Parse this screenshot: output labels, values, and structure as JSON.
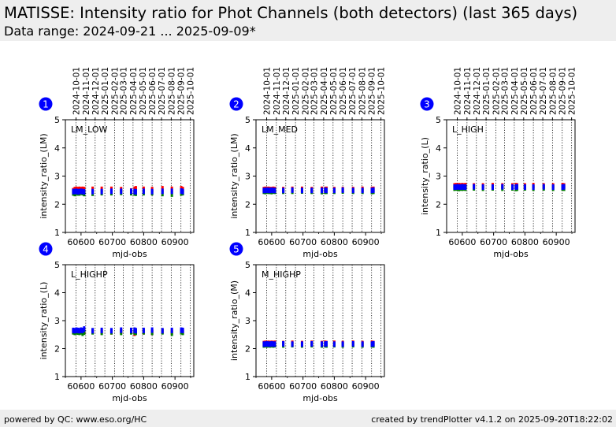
{
  "header": {
    "title": "MATISSE: Intensity ratio for Phot Channels (both detectors) (last 365 days)",
    "subtitle": "Data range: 2024-09-21 ... 2025-09-09*"
  },
  "footer": {
    "left": "powered by QC: www.eso.org/HC",
    "right": "created by trendPlotter v4.1.2 on 2025-09-20T18:22:02"
  },
  "colors": {
    "red": "#ff0000",
    "green": "#008000",
    "blue": "#0000ff",
    "badge": "#0000ff"
  },
  "chart_data": [
    {
      "type": "scatter",
      "panel_number": "1",
      "annotation": "LM_LOW",
      "xlabel": "mjd-obs",
      "ylabel": "intensity_ratio_(LM)",
      "xlim": [
        60550,
        60960
      ],
      "ylim": [
        1,
        5
      ],
      "x_ticks": [
        "60600",
        "60700",
        "60800",
        "60900"
      ],
      "y_ticks": [
        "1",
        "2",
        "3",
        "4",
        "5"
      ],
      "date_ticks": [
        "2024-10-01",
        "2024-11-01",
        "2024-12-01",
        "2025-01-01",
        "2025-02-01",
        "2025-03-01",
        "2025-04-01",
        "2025-05-01",
        "2025-06-01",
        "2025-07-01",
        "2025-08-01",
        "2025-09-01",
        "2025-10-01"
      ],
      "series": [
        {
          "color": "red",
          "x": [
            60575,
            60580,
            60585,
            60590,
            60595,
            60600,
            60605,
            60610,
            60637,
            60666,
            60697,
            60728,
            60760,
            60771,
            60775,
            60800,
            60827,
            60860,
            60890,
            60920,
            60925
          ],
          "y": [
            2.48,
            2.52,
            2.53,
            2.52,
            2.53,
            2.52,
            2.53,
            2.52,
            2.53,
            2.53,
            2.53,
            2.52,
            2.47,
            2.53,
            2.55,
            2.53,
            2.52,
            2.55,
            2.53,
            2.55,
            2.52
          ]
        },
        {
          "color": "green",
          "x": [
            60575,
            60580,
            60585,
            60590,
            60595,
            60600,
            60605,
            60610,
            60637,
            60666,
            60697,
            60728,
            60760,
            60771,
            60775,
            60800,
            60827,
            60860,
            60890,
            60920,
            60925
          ],
          "y": [
            2.4,
            2.38,
            2.42,
            2.4,
            2.4,
            2.43,
            2.41,
            2.38,
            2.39,
            2.41,
            2.41,
            2.42,
            2.41,
            2.4,
            2.39,
            2.41,
            2.41,
            2.38,
            2.36,
            2.4,
            2.41
          ]
        },
        {
          "color": "blue",
          "x": [
            60575,
            60580,
            60585,
            60590,
            60595,
            60600,
            60605,
            60610,
            60637,
            60666,
            60697,
            60728,
            60760,
            60771,
            60775,
            60800,
            60827,
            60860,
            60890,
            60920,
            60925
          ],
          "y": [
            2.45,
            2.45,
            2.46,
            2.44,
            2.45,
            2.46,
            2.45,
            2.44,
            2.45,
            2.45,
            2.46,
            2.46,
            2.46,
            2.45,
            2.44,
            2.46,
            2.45,
            2.46,
            2.46,
            2.47,
            2.45
          ]
        }
      ]
    },
    {
      "type": "scatter",
      "panel_number": "2",
      "annotation": "LM_MED",
      "xlabel": "mjd-obs",
      "ylabel": "intensity_ratio_(LM)",
      "xlim": [
        60550,
        60960
      ],
      "ylim": [
        1,
        5
      ],
      "x_ticks": [
        "60600",
        "60700",
        "60800",
        "60900"
      ],
      "y_ticks": [
        "1",
        "2",
        "3",
        "4",
        "5"
      ],
      "date_ticks": [
        "2024-10-01",
        "2024-11-01",
        "2024-12-01",
        "2025-01-01",
        "2025-02-01",
        "2025-03-01",
        "2025-04-01",
        "2025-05-01",
        "2025-06-01",
        "2025-07-01",
        "2025-08-01",
        "2025-09-01",
        "2025-10-01"
      ],
      "series": [
        {
          "color": "red",
          "x": [
            60575,
            60580,
            60585,
            60590,
            60595,
            60600,
            60605,
            60610,
            60637,
            60666,
            60697,
            60728,
            60760,
            60771,
            60775,
            60800,
            60827,
            60860,
            60890,
            60920,
            60925
          ],
          "y": [
            2.52,
            2.53,
            2.52,
            2.53,
            2.52,
            2.52,
            2.53,
            2.52,
            2.52,
            2.53,
            2.53,
            2.52,
            2.53,
            2.52,
            2.53,
            2.52,
            2.52,
            2.52,
            2.53,
            2.52,
            2.53
          ]
        },
        {
          "color": "green",
          "x": [
            60575,
            60580,
            60585,
            60590,
            60595,
            60600,
            60605,
            60610,
            60637,
            60666,
            60697,
            60728,
            60760,
            60771,
            60775,
            60800,
            60827,
            60860,
            60890,
            60920,
            60925
          ],
          "y": [
            2.46,
            2.45,
            2.47,
            2.46,
            2.46,
            2.45,
            2.47,
            2.46,
            2.46,
            2.46,
            2.47,
            2.46,
            2.45,
            2.46,
            2.46,
            2.46,
            2.47,
            2.46,
            2.46,
            2.45,
            2.46
          ]
        },
        {
          "color": "blue",
          "x": [
            60575,
            60580,
            60585,
            60590,
            60595,
            60600,
            60605,
            60610,
            60637,
            60666,
            60697,
            60728,
            60760,
            60771,
            60775,
            60800,
            60827,
            60860,
            60890,
            60920,
            60925
          ],
          "y": [
            2.49,
            2.49,
            2.5,
            2.49,
            2.49,
            2.5,
            2.49,
            2.49,
            2.49,
            2.5,
            2.49,
            2.49,
            2.49,
            2.5,
            2.49,
            2.49,
            2.5,
            2.49,
            2.49,
            2.49,
            2.5
          ]
        }
      ]
    },
    {
      "type": "scatter",
      "panel_number": "3",
      "annotation": "L_HIGH",
      "xlabel": "mjd-obs",
      "ylabel": "intensity_ratio_(L)",
      "xlim": [
        60550,
        60960
      ],
      "ylim": [
        1,
        5
      ],
      "x_ticks": [
        "60600",
        "60700",
        "60800",
        "60900"
      ],
      "y_ticks": [
        "1",
        "2",
        "3",
        "4",
        "5"
      ],
      "date_ticks": [
        "2024-10-01",
        "2024-11-01",
        "2024-12-01",
        "2025-01-01",
        "2025-02-01",
        "2025-03-01",
        "2025-04-01",
        "2025-05-01",
        "2025-06-01",
        "2025-07-01",
        "2025-08-01",
        "2025-09-01",
        "2025-10-01"
      ],
      "series": [
        {
          "color": "red",
          "x": [
            60575,
            60580,
            60585,
            60590,
            60595,
            60600,
            60605,
            60610,
            60637,
            60666,
            60697,
            60728,
            60760,
            60771,
            60775,
            60800,
            60827,
            60860,
            60890,
            60920,
            60925
          ],
          "y": [
            2.65,
            2.66,
            2.65,
            2.66,
            2.65,
            2.66,
            2.65,
            2.66,
            2.65,
            2.65,
            2.66,
            2.65,
            2.65,
            2.66,
            2.65,
            2.65,
            2.66,
            2.65,
            2.65,
            2.66,
            2.65
          ]
        },
        {
          "color": "green",
          "x": [
            60575,
            60580,
            60585,
            60590,
            60595,
            60600,
            60605,
            60610,
            60637,
            60666,
            60697,
            60728,
            60760,
            60771,
            60775,
            60800,
            60827,
            60860,
            60890,
            60920,
            60925
          ],
          "y": [
            2.57,
            2.58,
            2.57,
            2.56,
            2.58,
            2.57,
            2.58,
            2.57,
            2.58,
            2.57,
            2.58,
            2.57,
            2.58,
            2.56,
            2.57,
            2.58,
            2.57,
            2.58,
            2.57,
            2.58,
            2.57
          ]
        },
        {
          "color": "blue",
          "x": [
            60575,
            60580,
            60585,
            60590,
            60595,
            60600,
            60605,
            60610,
            60637,
            60666,
            60697,
            60728,
            60760,
            60771,
            60775,
            60800,
            60827,
            60860,
            60890,
            60920,
            60925
          ],
          "y": [
            2.61,
            2.61,
            2.62,
            2.61,
            2.61,
            2.62,
            2.61,
            2.61,
            2.62,
            2.61,
            2.61,
            2.62,
            2.61,
            2.61,
            2.62,
            2.61,
            2.61,
            2.62,
            2.61,
            2.61,
            2.62
          ]
        }
      ]
    },
    {
      "type": "scatter",
      "panel_number": "4",
      "annotation": "L_HIGHP",
      "xlabel": "mjd-obs",
      "ylabel": "intensity_ratio_(L)",
      "xlim": [
        60550,
        60960
      ],
      "ylim": [
        1,
        5
      ],
      "x_ticks": [
        "60600",
        "60700",
        "60800",
        "60900"
      ],
      "y_ticks": [
        "1",
        "2",
        "3",
        "4",
        "5"
      ],
      "series": [
        {
          "color": "red",
          "x": [
            60575,
            60580,
            60585,
            60590,
            60595,
            60600,
            60605,
            60610,
            60637,
            60666,
            60697,
            60728,
            60760,
            60771,
            60775,
            60800,
            60827,
            60860,
            60890,
            60920,
            60925
          ],
          "y": [
            2.62,
            2.61,
            2.62,
            2.6,
            2.62,
            2.61,
            2.62,
            2.6,
            2.62,
            2.61,
            2.6,
            2.62,
            2.61,
            2.55,
            2.62,
            2.6,
            2.58,
            2.62,
            2.6,
            2.62,
            2.61
          ]
        },
        {
          "color": "green",
          "x": [
            60575,
            60580,
            60585,
            60590,
            60595,
            60600,
            60605,
            60610,
            60637,
            60666,
            60697,
            60728,
            60760,
            60771,
            60775,
            60800,
            60827,
            60860,
            60890,
            60920,
            60925
          ],
          "y": [
            2.6,
            2.58,
            2.6,
            2.59,
            2.58,
            2.6,
            2.55,
            2.59,
            2.6,
            2.58,
            2.6,
            2.58,
            2.6,
            2.59,
            2.58,
            2.6,
            2.58,
            2.6,
            2.55,
            2.6,
            2.58
          ]
        },
        {
          "color": "blue",
          "x": [
            60575,
            60580,
            60585,
            60590,
            60595,
            60600,
            60605,
            60610,
            60637,
            60666,
            60697,
            60728,
            60760,
            60771,
            60775,
            60800,
            60827,
            60860,
            60890,
            60920,
            60925
          ],
          "y": [
            2.65,
            2.64,
            2.66,
            2.65,
            2.64,
            2.66,
            2.65,
            2.7,
            2.64,
            2.65,
            2.64,
            2.66,
            2.65,
            2.66,
            2.64,
            2.65,
            2.66,
            2.64,
            2.65,
            2.66,
            2.65
          ]
        }
      ]
    },
    {
      "type": "scatter",
      "panel_number": "5",
      "annotation": "M_HIGHP",
      "xlabel": "mjd-obs",
      "ylabel": "intensity_ratio_(M)",
      "xlim": [
        60550,
        60960
      ],
      "ylim": [
        1,
        5
      ],
      "x_ticks": [
        "60600",
        "60700",
        "60800",
        "60900"
      ],
      "y_ticks": [
        "1",
        "2",
        "3",
        "4",
        "5"
      ],
      "series": [
        {
          "color": "red",
          "x": [
            60575,
            60580,
            60585,
            60590,
            60595,
            60600,
            60605,
            60610,
            60637,
            60666,
            60697,
            60728,
            60760,
            60771,
            60775,
            60800,
            60827,
            60860,
            60890,
            60920,
            60925
          ],
          "y": [
            2.18,
            2.19,
            2.18,
            2.19,
            2.18,
            2.19,
            2.18,
            2.19,
            2.18,
            2.19,
            2.18,
            2.19,
            2.18,
            2.19,
            2.18,
            2.19,
            2.18,
            2.19,
            2.18,
            2.19,
            2.18
          ]
        },
        {
          "color": "green",
          "x": [
            60575,
            60580,
            60585,
            60590,
            60595,
            60600,
            60605,
            60610,
            60637,
            60666,
            60697,
            60728,
            60760,
            60771,
            60775,
            60800,
            60827,
            60860,
            60890,
            60920,
            60925
          ],
          "y": [
            2.13,
            2.14,
            2.13,
            2.14,
            2.13,
            2.14,
            2.13,
            2.14,
            2.13,
            2.14,
            2.13,
            2.14,
            2.13,
            2.14,
            2.13,
            2.14,
            2.13,
            2.14,
            2.13,
            2.14,
            2.13
          ]
        },
        {
          "color": "blue",
          "x": [
            60575,
            60580,
            60585,
            60590,
            60595,
            60600,
            60605,
            60610,
            60637,
            60666,
            60697,
            60728,
            60760,
            60771,
            60775,
            60800,
            60827,
            60860,
            60890,
            60920,
            60925
          ],
          "y": [
            2.16,
            2.16,
            2.17,
            2.16,
            2.16,
            2.17,
            2.16,
            2.16,
            2.17,
            2.16,
            2.16,
            2.17,
            2.16,
            2.16,
            2.17,
            2.16,
            2.16,
            2.17,
            2.16,
            2.16,
            2.17
          ]
        }
      ]
    }
  ]
}
